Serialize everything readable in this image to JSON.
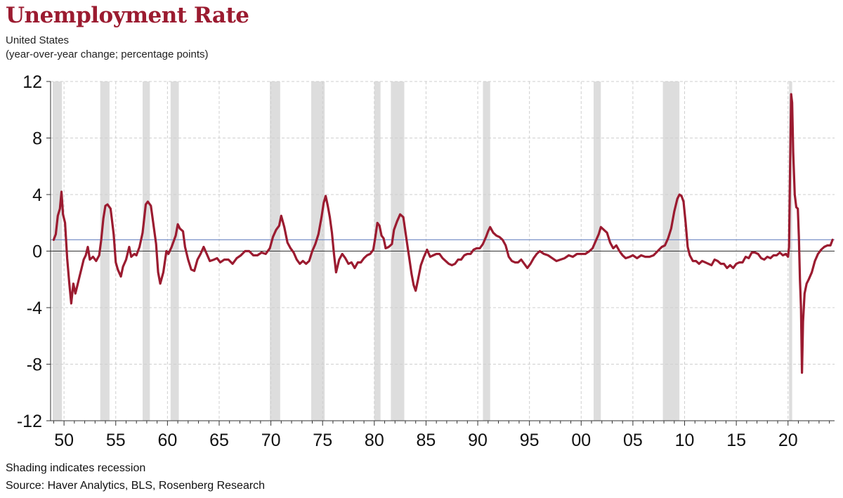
{
  "header": {
    "title": "Unemployment Rate",
    "subtitle_line1": "United States",
    "subtitle_line2": "(year-over-year change; percentage points)"
  },
  "footer": {
    "note": "Shading indicates recession",
    "source": "Source: Haver Analytics, BLS, Rosenberg Research"
  },
  "chart_data": {
    "type": "line",
    "title": "Unemployment Rate",
    "subtitle": "United States (year-over-year change; percentage points)",
    "xlabel": "",
    "ylabel": "",
    "xlim": [
      1948.7,
      2024.5
    ],
    "ylim": [
      -12,
      12
    ],
    "yticks": [
      12,
      8,
      4,
      0,
      -4,
      -8,
      -12
    ],
    "ytick_labels": [
      "12",
      "8",
      "4",
      "0",
      "-4",
      "-8",
      "-12"
    ],
    "xticks": [
      1950,
      1955,
      1960,
      1965,
      1970,
      1975,
      1980,
      1985,
      1990,
      1995,
      2000,
      2005,
      2010,
      2015,
      2020
    ],
    "xtick_labels": [
      "50",
      "55",
      "60",
      "65",
      "70",
      "75",
      "80",
      "85",
      "90",
      "95",
      "00",
      "05",
      "10",
      "15",
      "20"
    ],
    "grid": true,
    "line_color": "#9b1b30",
    "reference_line": {
      "value": 0.8,
      "color": "#7b93c9"
    },
    "zero_line": {
      "value": 0,
      "color": "#333333"
    },
    "recessions": [
      [
        1948.9,
        1949.8
      ],
      [
        1953.5,
        1954.4
      ],
      [
        1957.6,
        1958.3
      ],
      [
        1960.3,
        1961.1
      ],
      [
        1969.9,
        1970.9
      ],
      [
        1973.9,
        1975.2
      ],
      [
        1980.0,
        1980.6
      ],
      [
        1981.6,
        1982.9
      ],
      [
        1990.5,
        1991.2
      ],
      [
        2001.2,
        2001.9
      ],
      [
        2007.9,
        2009.5
      ],
      [
        2020.1,
        2020.4
      ]
    ],
    "recession_color": "#dddddd",
    "series": [
      {
        "values": [
          [
            1949.0,
            0.8
          ],
          [
            1949.2,
            1.2
          ],
          [
            1949.4,
            2.5
          ],
          [
            1949.6,
            3.0
          ],
          [
            1949.75,
            4.2
          ],
          [
            1949.9,
            2.6
          ],
          [
            1950.1,
            2.0
          ],
          [
            1950.3,
            -0.5
          ],
          [
            1950.5,
            -2.2
          ],
          [
            1950.7,
            -3.7
          ],
          [
            1950.9,
            -2.3
          ],
          [
            1951.1,
            -3.0
          ],
          [
            1951.3,
            -2.4
          ],
          [
            1951.5,
            -1.8
          ],
          [
            1951.7,
            -1.2
          ],
          [
            1951.9,
            -0.6
          ],
          [
            1952.1,
            -0.3
          ],
          [
            1952.3,
            0.3
          ],
          [
            1952.5,
            -0.6
          ],
          [
            1952.8,
            -0.4
          ],
          [
            1953.1,
            -0.7
          ],
          [
            1953.4,
            -0.3
          ],
          [
            1953.6,
            0.8
          ],
          [
            1953.8,
            2.3
          ],
          [
            1954.0,
            3.2
          ],
          [
            1954.2,
            3.3
          ],
          [
            1954.5,
            3.0
          ],
          [
            1954.8,
            1.2
          ],
          [
            1955.0,
            -0.8
          ],
          [
            1955.2,
            -1.3
          ],
          [
            1955.5,
            -1.8
          ],
          [
            1955.7,
            -1.1
          ],
          [
            1956.0,
            -0.6
          ],
          [
            1956.3,
            0.3
          ],
          [
            1956.5,
            -0.4
          ],
          [
            1956.8,
            -0.2
          ],
          [
            1957.0,
            -0.3
          ],
          [
            1957.3,
            0.3
          ],
          [
            1957.6,
            1.3
          ],
          [
            1957.9,
            3.3
          ],
          [
            1958.1,
            3.5
          ],
          [
            1958.4,
            3.2
          ],
          [
            1958.7,
            1.6
          ],
          [
            1958.9,
            0.5
          ],
          [
            1959.1,
            -1.5
          ],
          [
            1959.3,
            -2.3
          ],
          [
            1959.6,
            -1.5
          ],
          [
            1959.9,
            0.0
          ],
          [
            1960.1,
            -0.2
          ],
          [
            1960.4,
            0.3
          ],
          [
            1960.6,
            0.7
          ],
          [
            1960.8,
            1.1
          ],
          [
            1961.0,
            1.9
          ],
          [
            1961.2,
            1.6
          ],
          [
            1961.5,
            1.4
          ],
          [
            1961.7,
            0.3
          ],
          [
            1962.0,
            -0.6
          ],
          [
            1962.3,
            -1.3
          ],
          [
            1962.6,
            -1.4
          ],
          [
            1962.9,
            -0.6
          ],
          [
            1963.2,
            -0.2
          ],
          [
            1963.5,
            0.3
          ],
          [
            1963.8,
            -0.2
          ],
          [
            1964.1,
            -0.7
          ],
          [
            1964.5,
            -0.6
          ],
          [
            1964.8,
            -0.5
          ],
          [
            1965.1,
            -0.8
          ],
          [
            1965.5,
            -0.6
          ],
          [
            1965.9,
            -0.6
          ],
          [
            1966.3,
            -0.9
          ],
          [
            1966.7,
            -0.5
          ],
          [
            1967.1,
            -0.3
          ],
          [
            1967.5,
            0.0
          ],
          [
            1967.9,
            0.0
          ],
          [
            1968.3,
            -0.3
          ],
          [
            1968.7,
            -0.3
          ],
          [
            1969.1,
            -0.1
          ],
          [
            1969.5,
            -0.2
          ],
          [
            1969.9,
            0.2
          ],
          [
            1970.2,
            1.0
          ],
          [
            1970.5,
            1.5
          ],
          [
            1970.8,
            1.8
          ],
          [
            1971.0,
            2.5
          ],
          [
            1971.3,
            1.7
          ],
          [
            1971.6,
            0.6
          ],
          [
            1971.9,
            0.2
          ],
          [
            1972.2,
            -0.1
          ],
          [
            1972.5,
            -0.6
          ],
          [
            1972.8,
            -0.9
          ],
          [
            1973.1,
            -0.7
          ],
          [
            1973.4,
            -0.9
          ],
          [
            1973.7,
            -0.7
          ],
          [
            1974.0,
            0.0
          ],
          [
            1974.3,
            0.5
          ],
          [
            1974.6,
            1.2
          ],
          [
            1974.9,
            2.4
          ],
          [
            1975.1,
            3.4
          ],
          [
            1975.3,
            3.9
          ],
          [
            1975.5,
            3.2
          ],
          [
            1975.7,
            2.4
          ],
          [
            1975.9,
            1.3
          ],
          [
            1976.1,
            -0.2
          ],
          [
            1976.3,
            -1.5
          ],
          [
            1976.6,
            -0.6
          ],
          [
            1976.9,
            -0.2
          ],
          [
            1977.2,
            -0.5
          ],
          [
            1977.5,
            -0.9
          ],
          [
            1977.8,
            -0.8
          ],
          [
            1978.1,
            -1.2
          ],
          [
            1978.4,
            -0.8
          ],
          [
            1978.7,
            -0.8
          ],
          [
            1979.0,
            -0.5
          ],
          [
            1979.3,
            -0.3
          ],
          [
            1979.6,
            -0.2
          ],
          [
            1979.9,
            0.1
          ],
          [
            1980.1,
            1.0
          ],
          [
            1980.3,
            2.0
          ],
          [
            1980.5,
            1.8
          ],
          [
            1980.7,
            1.1
          ],
          [
            1980.9,
            0.9
          ],
          [
            1981.1,
            0.2
          ],
          [
            1981.4,
            0.3
          ],
          [
            1981.7,
            0.5
          ],
          [
            1981.9,
            1.5
          ],
          [
            1982.2,
            2.1
          ],
          [
            1982.5,
            2.6
          ],
          [
            1982.8,
            2.4
          ],
          [
            1983.0,
            1.4
          ],
          [
            1983.2,
            0.4
          ],
          [
            1983.4,
            -0.6
          ],
          [
            1983.6,
            -1.6
          ],
          [
            1983.8,
            -2.4
          ],
          [
            1984.0,
            -2.8
          ],
          [
            1984.2,
            -2.1
          ],
          [
            1984.5,
            -1.0
          ],
          [
            1984.8,
            -0.4
          ],
          [
            1985.1,
            0.1
          ],
          [
            1985.4,
            -0.4
          ],
          [
            1985.7,
            -0.3
          ],
          [
            1986.0,
            -0.2
          ],
          [
            1986.3,
            -0.2
          ],
          [
            1986.6,
            -0.5
          ],
          [
            1986.9,
            -0.7
          ],
          [
            1987.2,
            -0.9
          ],
          [
            1987.5,
            -1.0
          ],
          [
            1987.8,
            -0.9
          ],
          [
            1988.1,
            -0.6
          ],
          [
            1988.4,
            -0.6
          ],
          [
            1988.7,
            -0.3
          ],
          [
            1989.0,
            -0.2
          ],
          [
            1989.3,
            -0.2
          ],
          [
            1989.6,
            0.1
          ],
          [
            1989.9,
            0.2
          ],
          [
            1990.2,
            0.2
          ],
          [
            1990.5,
            0.5
          ],
          [
            1990.8,
            1.0
          ],
          [
            1991.0,
            1.4
          ],
          [
            1991.2,
            1.7
          ],
          [
            1991.5,
            1.3
          ],
          [
            1991.8,
            1.1
          ],
          [
            1992.1,
            1.0
          ],
          [
            1992.4,
            0.8
          ],
          [
            1992.7,
            0.4
          ],
          [
            1993.0,
            -0.4
          ],
          [
            1993.3,
            -0.7
          ],
          [
            1993.6,
            -0.8
          ],
          [
            1993.9,
            -0.8
          ],
          [
            1994.2,
            -0.6
          ],
          [
            1994.5,
            -0.9
          ],
          [
            1994.8,
            -1.2
          ],
          [
            1995.1,
            -0.9
          ],
          [
            1995.4,
            -0.5
          ],
          [
            1995.7,
            -0.2
          ],
          [
            1996.0,
            0.0
          ],
          [
            1996.4,
            -0.2
          ],
          [
            1996.8,
            -0.3
          ],
          [
            1997.2,
            -0.5
          ],
          [
            1997.6,
            -0.7
          ],
          [
            1998.0,
            -0.6
          ],
          [
            1998.4,
            -0.5
          ],
          [
            1998.8,
            -0.3
          ],
          [
            1999.2,
            -0.4
          ],
          [
            1999.6,
            -0.2
          ],
          [
            2000.0,
            -0.2
          ],
          [
            2000.4,
            -0.2
          ],
          [
            2000.8,
            0.0
          ],
          [
            2001.1,
            0.2
          ],
          [
            2001.4,
            0.7
          ],
          [
            2001.7,
            1.2
          ],
          [
            2001.9,
            1.7
          ],
          [
            2002.2,
            1.5
          ],
          [
            2002.5,
            1.3
          ],
          [
            2002.8,
            0.6
          ],
          [
            2003.1,
            0.2
          ],
          [
            2003.4,
            0.4
          ],
          [
            2003.7,
            0.0
          ],
          [
            2004.0,
            -0.3
          ],
          [
            2004.3,
            -0.5
          ],
          [
            2004.7,
            -0.4
          ],
          [
            2005.0,
            -0.3
          ],
          [
            2005.4,
            -0.5
          ],
          [
            2005.8,
            -0.3
          ],
          [
            2006.2,
            -0.4
          ],
          [
            2006.6,
            -0.4
          ],
          [
            2007.0,
            -0.3
          ],
          [
            2007.4,
            0.0
          ],
          [
            2007.8,
            0.3
          ],
          [
            2008.1,
            0.4
          ],
          [
            2008.4,
            0.9
          ],
          [
            2008.7,
            1.6
          ],
          [
            2009.0,
            2.8
          ],
          [
            2009.3,
            3.7
          ],
          [
            2009.5,
            4.0
          ],
          [
            2009.7,
            3.9
          ],
          [
            2009.9,
            3.5
          ],
          [
            2010.1,
            2.0
          ],
          [
            2010.3,
            0.3
          ],
          [
            2010.5,
            -0.3
          ],
          [
            2010.8,
            -0.7
          ],
          [
            2011.1,
            -0.7
          ],
          [
            2011.4,
            -0.9
          ],
          [
            2011.7,
            -0.7
          ],
          [
            2012.0,
            -0.8
          ],
          [
            2012.3,
            -0.9
          ],
          [
            2012.6,
            -1.0
          ],
          [
            2012.9,
            -0.6
          ],
          [
            2013.2,
            -0.7
          ],
          [
            2013.5,
            -0.9
          ],
          [
            2013.8,
            -0.9
          ],
          [
            2014.1,
            -1.2
          ],
          [
            2014.4,
            -1.0
          ],
          [
            2014.7,
            -1.2
          ],
          [
            2015.0,
            -0.9
          ],
          [
            2015.3,
            -0.8
          ],
          [
            2015.6,
            -0.8
          ],
          [
            2015.9,
            -0.4
          ],
          [
            2016.2,
            -0.5
          ],
          [
            2016.5,
            -0.1
          ],
          [
            2016.8,
            -0.1
          ],
          [
            2017.1,
            -0.2
          ],
          [
            2017.4,
            -0.5
          ],
          [
            2017.7,
            -0.6
          ],
          [
            2018.0,
            -0.4
          ],
          [
            2018.3,
            -0.5
          ],
          [
            2018.6,
            -0.3
          ],
          [
            2018.9,
            -0.3
          ],
          [
            2019.2,
            -0.1
          ],
          [
            2019.5,
            -0.3
          ],
          [
            2019.8,
            -0.2
          ],
          [
            2020.0,
            -0.4
          ],
          [
            2020.1,
            0.3
          ],
          [
            2020.2,
            6.0
          ],
          [
            2020.3,
            11.1
          ],
          [
            2020.4,
            10.5
          ],
          [
            2020.5,
            7.0
          ],
          [
            2020.65,
            4.0
          ],
          [
            2020.8,
            3.1
          ],
          [
            2020.95,
            3.0
          ],
          [
            2021.05,
            1.0
          ],
          [
            2021.15,
            -2.0
          ],
          [
            2021.25,
            -4.0
          ],
          [
            2021.35,
            -8.6
          ],
          [
            2021.45,
            -5.0
          ],
          [
            2021.6,
            -3.0
          ],
          [
            2021.8,
            -2.3
          ],
          [
            2022.0,
            -2.0
          ],
          [
            2022.3,
            -1.5
          ],
          [
            2022.6,
            -0.7
          ],
          [
            2022.9,
            -0.2
          ],
          [
            2023.2,
            0.1
          ],
          [
            2023.5,
            0.3
          ],
          [
            2023.8,
            0.4
          ],
          [
            2024.1,
            0.4
          ],
          [
            2024.3,
            0.8
          ]
        ]
      }
    ]
  }
}
